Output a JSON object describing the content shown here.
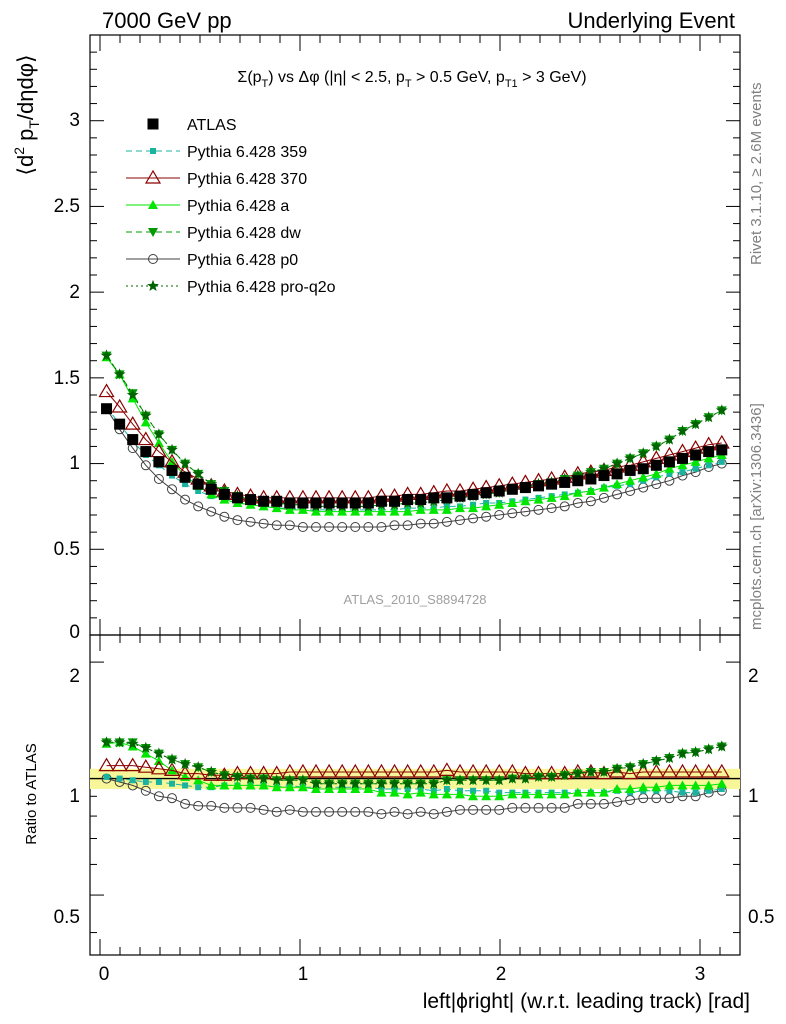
{
  "header": {
    "left": "7000 GeV pp",
    "right": "Underlying Event"
  },
  "side_text": {
    "rivet": "Rivet 3.1.10, ≥ 2.6M events",
    "mcplots": "mcplots.cern.ch [arXiv:1306.3436]"
  },
  "analysis_id": "ATLAS_2010_S8894728",
  "colors": {
    "ATLAS": "#000000",
    "p359": "#19b3a0",
    "p370": "#8b0000",
    "pa": "#00e600",
    "pdw": "#009900",
    "pp0": "#404040",
    "pq2o": "#006400",
    "band": "#f7f79a"
  },
  "chart_data": [
    {
      "type": "line",
      "panel": "main",
      "title_parts": {
        "sigma": "Σ(p",
        "t1": "T",
        "mid": ") vs Δφ (|η| < 2.5, p",
        "t2": "T",
        "mid2": " > 0.5 GeV, p",
        "t3": "T1",
        "end": " > 3 GeV)"
      },
      "ylabel_parts": {
        "a": "⟨d",
        "b": "2",
        "c": " p",
        "d": "T",
        "e": "/dηdφ⟩"
      },
      "xlim": [
        -0.05,
        3.2
      ],
      "ylim": [
        0,
        3.5
      ],
      "yticks": [
        "0.5",
        "1",
        "1.5",
        "2",
        "2.5",
        "3"
      ],
      "bottom_tick_label": "0",
      "x": [
        0.0327,
        0.0982,
        0.1636,
        0.2291,
        0.2945,
        0.36,
        0.4254,
        0.4909,
        0.5563,
        0.6218,
        0.6872,
        0.7527,
        0.8181,
        0.8836,
        0.949,
        1.0145,
        1.0799,
        1.1454,
        1.2108,
        1.2763,
        1.3417,
        1.4072,
        1.4726,
        1.5381,
        1.6035,
        1.669,
        1.7344,
        1.7999,
        1.8653,
        1.9308,
        1.9962,
        2.0617,
        2.1271,
        2.1926,
        2.258,
        2.3235,
        2.3889,
        2.4544,
        2.5198,
        2.5853,
        2.6507,
        2.7162,
        2.7816,
        2.8471,
        2.9125,
        2.978,
        3.0434,
        3.1089
      ],
      "series": [
        {
          "name": "ATLAS",
          "key": "ATLAS",
          "marker": "square",
          "line": "none",
          "values": [
            1.32,
            1.23,
            1.14,
            1.07,
            1.01,
            0.96,
            0.92,
            0.88,
            0.85,
            0.82,
            0.8,
            0.79,
            0.78,
            0.78,
            0.77,
            0.77,
            0.77,
            0.77,
            0.77,
            0.77,
            0.77,
            0.78,
            0.78,
            0.79,
            0.79,
            0.8,
            0.8,
            0.81,
            0.82,
            0.83,
            0.84,
            0.85,
            0.86,
            0.87,
            0.88,
            0.89,
            0.9,
            0.91,
            0.93,
            0.94,
            0.96,
            0.97,
            0.99,
            1.01,
            1.03,
            1.05,
            1.07,
            1.08
          ]
        },
        {
          "name": "Pythia 6.428 359",
          "key": "p359",
          "marker": "smallsquare",
          "line": "dashed",
          "values": [
            1.33,
            1.23,
            1.13,
            1.05,
            0.99,
            0.93,
            0.88,
            0.84,
            0.81,
            0.79,
            0.77,
            0.76,
            0.75,
            0.74,
            0.74,
            0.73,
            0.73,
            0.73,
            0.73,
            0.73,
            0.73,
            0.73,
            0.73,
            0.74,
            0.74,
            0.74,
            0.75,
            0.75,
            0.76,
            0.77,
            0.77,
            0.78,
            0.79,
            0.8,
            0.81,
            0.82,
            0.83,
            0.84,
            0.86,
            0.87,
            0.88,
            0.9,
            0.92,
            0.94,
            0.95,
            0.97,
            0.99,
            1.01
          ]
        },
        {
          "name": "Pythia 6.428 370",
          "key": "p370",
          "marker": "triangle-open",
          "line": "solid",
          "values": [
            1.42,
            1.33,
            1.23,
            1.14,
            1.07,
            1.01,
            0.95,
            0.91,
            0.87,
            0.84,
            0.82,
            0.81,
            0.8,
            0.8,
            0.8,
            0.8,
            0.8,
            0.8,
            0.8,
            0.8,
            0.8,
            0.81,
            0.81,
            0.82,
            0.82,
            0.83,
            0.84,
            0.84,
            0.85,
            0.86,
            0.87,
            0.88,
            0.89,
            0.9,
            0.91,
            0.92,
            0.94,
            0.95,
            0.96,
            0.98,
            0.99,
            1.01,
            1.03,
            1.05,
            1.07,
            1.09,
            1.11,
            1.12
          ]
        },
        {
          "name": "Pythia 6.428 a",
          "key": "pa",
          "marker": "triangle",
          "line": "solid",
          "values": [
            1.62,
            1.52,
            1.38,
            1.24,
            1.12,
            1.01,
            0.93,
            0.87,
            0.82,
            0.79,
            0.77,
            0.76,
            0.75,
            0.74,
            0.73,
            0.73,
            0.72,
            0.72,
            0.72,
            0.72,
            0.72,
            0.72,
            0.72,
            0.72,
            0.73,
            0.73,
            0.73,
            0.74,
            0.74,
            0.75,
            0.76,
            0.77,
            0.78,
            0.79,
            0.8,
            0.81,
            0.83,
            0.84,
            0.86,
            0.88,
            0.9,
            0.92,
            0.94,
            0.97,
            0.99,
            1.01,
            1.03,
            1.05
          ]
        },
        {
          "name": "Pythia 6.428 dw",
          "key": "pdw",
          "marker": "triangle-down",
          "line": "dashed",
          "values": [
            1.63,
            1.52,
            1.41,
            1.28,
            1.17,
            1.08,
            1.0,
            0.94,
            0.88,
            0.84,
            0.81,
            0.79,
            0.78,
            0.77,
            0.76,
            0.76,
            0.75,
            0.75,
            0.75,
            0.75,
            0.75,
            0.76,
            0.76,
            0.77,
            0.77,
            0.78,
            0.79,
            0.8,
            0.81,
            0.82,
            0.83,
            0.85,
            0.86,
            0.88,
            0.89,
            0.91,
            0.93,
            0.95,
            0.97,
            1.0,
            1.03,
            1.06,
            1.1,
            1.14,
            1.19,
            1.23,
            1.27,
            1.31
          ]
        },
        {
          "name": "Pythia 6.428 p0",
          "key": "pp0",
          "marker": "circle-open",
          "line": "solid",
          "values": [
            1.32,
            1.2,
            1.09,
            0.99,
            0.91,
            0.85,
            0.79,
            0.75,
            0.72,
            0.69,
            0.67,
            0.66,
            0.65,
            0.64,
            0.64,
            0.63,
            0.63,
            0.63,
            0.63,
            0.63,
            0.63,
            0.63,
            0.64,
            0.64,
            0.65,
            0.65,
            0.66,
            0.67,
            0.68,
            0.69,
            0.7,
            0.71,
            0.72,
            0.73,
            0.74,
            0.75,
            0.77,
            0.78,
            0.8,
            0.82,
            0.84,
            0.86,
            0.88,
            0.9,
            0.93,
            0.95,
            0.98,
            1.0
          ]
        },
        {
          "name": "Pythia 6.428 pro-q2o",
          "key": "pq2o",
          "marker": "star",
          "line": "dotted",
          "values": [
            1.63,
            1.52,
            1.4,
            1.28,
            1.17,
            1.08,
            1.0,
            0.94,
            0.88,
            0.84,
            0.81,
            0.79,
            0.78,
            0.77,
            0.76,
            0.76,
            0.75,
            0.75,
            0.75,
            0.75,
            0.75,
            0.76,
            0.76,
            0.77,
            0.77,
            0.78,
            0.79,
            0.8,
            0.81,
            0.82,
            0.83,
            0.85,
            0.86,
            0.88,
            0.89,
            0.91,
            0.93,
            0.95,
            0.97,
            1.0,
            1.03,
            1.06,
            1.1,
            1.14,
            1.19,
            1.23,
            1.27,
            1.31
          ]
        }
      ]
    },
    {
      "type": "line",
      "panel": "ratio",
      "ylabel": "Ratio to ATLAS",
      "ylim": [
        0.35,
        2.35
      ],
      "log_y": true,
      "yticks": [
        "0.5",
        "1",
        "2"
      ],
      "xlabel": "left|ϕright| (w.r.t. leading track) [rad]",
      "xticks": [
        "0",
        "1",
        "2",
        "3"
      ],
      "band": [
        0.94,
        1.06
      ],
      "series_ratio": {
        "p359": [
          1.01,
          1.0,
          0.99,
          0.98,
          0.98,
          0.97,
          0.96,
          0.95,
          0.95,
          0.96,
          0.96,
          0.96,
          0.96,
          0.95,
          0.96,
          0.95,
          0.95,
          0.95,
          0.95,
          0.95,
          0.95,
          0.94,
          0.94,
          0.94,
          0.94,
          0.93,
          0.94,
          0.93,
          0.93,
          0.93,
          0.92,
          0.92,
          0.92,
          0.92,
          0.92,
          0.92,
          0.92,
          0.92,
          0.92,
          0.93,
          0.92,
          0.93,
          0.93,
          0.93,
          0.92,
          0.92,
          0.93,
          0.94
        ],
        "p370": [
          1.08,
          1.08,
          1.08,
          1.07,
          1.06,
          1.05,
          1.03,
          1.03,
          1.02,
          1.02,
          1.03,
          1.03,
          1.03,
          1.03,
          1.04,
          1.04,
          1.04,
          1.04,
          1.04,
          1.04,
          1.04,
          1.04,
          1.04,
          1.04,
          1.04,
          1.04,
          1.05,
          1.04,
          1.04,
          1.04,
          1.04,
          1.04,
          1.03,
          1.03,
          1.03,
          1.03,
          1.04,
          1.04,
          1.03,
          1.04,
          1.03,
          1.04,
          1.04,
          1.04,
          1.04,
          1.04,
          1.04,
          1.04
        ],
        "pa": [
          1.23,
          1.24,
          1.21,
          1.16,
          1.11,
          1.05,
          1.01,
          0.99,
          0.96,
          0.96,
          0.96,
          0.96,
          0.96,
          0.95,
          0.95,
          0.95,
          0.94,
          0.94,
          0.94,
          0.94,
          0.94,
          0.92,
          0.92,
          0.91,
          0.92,
          0.91,
          0.91,
          0.91,
          0.9,
          0.9,
          0.9,
          0.91,
          0.91,
          0.91,
          0.91,
          0.91,
          0.92,
          0.92,
          0.92,
          0.94,
          0.94,
          0.95,
          0.95,
          0.96,
          0.96,
          0.96,
          0.96,
          0.97
        ],
        "pdw": [
          1.24,
          1.24,
          1.24,
          1.2,
          1.16,
          1.12,
          1.09,
          1.07,
          1.04,
          1.02,
          1.01,
          1.0,
          1.0,
          0.99,
          0.99,
          0.99,
          0.97,
          0.97,
          0.97,
          0.97,
          0.97,
          0.97,
          0.97,
          0.97,
          0.97,
          0.97,
          0.99,
          0.99,
          0.99,
          0.99,
          0.99,
          1.0,
          1.0,
          1.01,
          1.01,
          1.02,
          1.03,
          1.04,
          1.04,
          1.06,
          1.07,
          1.09,
          1.11,
          1.13,
          1.16,
          1.17,
          1.19,
          1.21
        ],
        "pp0": [
          1.0,
          0.98,
          0.96,
          0.93,
          0.9,
          0.89,
          0.86,
          0.85,
          0.85,
          0.84,
          0.84,
          0.84,
          0.83,
          0.82,
          0.83,
          0.82,
          0.82,
          0.82,
          0.82,
          0.82,
          0.82,
          0.81,
          0.82,
          0.81,
          0.82,
          0.81,
          0.82,
          0.83,
          0.83,
          0.83,
          0.83,
          0.84,
          0.84,
          0.84,
          0.84,
          0.84,
          0.86,
          0.86,
          0.86,
          0.87,
          0.88,
          0.89,
          0.89,
          0.89,
          0.9,
          0.9,
          0.92,
          0.93
        ],
        "pq2o": [
          1.24,
          1.24,
          1.23,
          1.2,
          1.16,
          1.12,
          1.09,
          1.07,
          1.04,
          1.02,
          1.01,
          1.0,
          1.0,
          0.99,
          0.99,
          0.99,
          0.97,
          0.97,
          0.97,
          0.97,
          0.97,
          0.97,
          0.97,
          0.97,
          0.97,
          0.97,
          0.99,
          0.99,
          0.99,
          0.99,
          0.99,
          1.0,
          1.0,
          1.01,
          1.01,
          1.02,
          1.03,
          1.04,
          1.04,
          1.06,
          1.07,
          1.09,
          1.11,
          1.13,
          1.16,
          1.17,
          1.19,
          1.21
        ]
      }
    }
  ]
}
